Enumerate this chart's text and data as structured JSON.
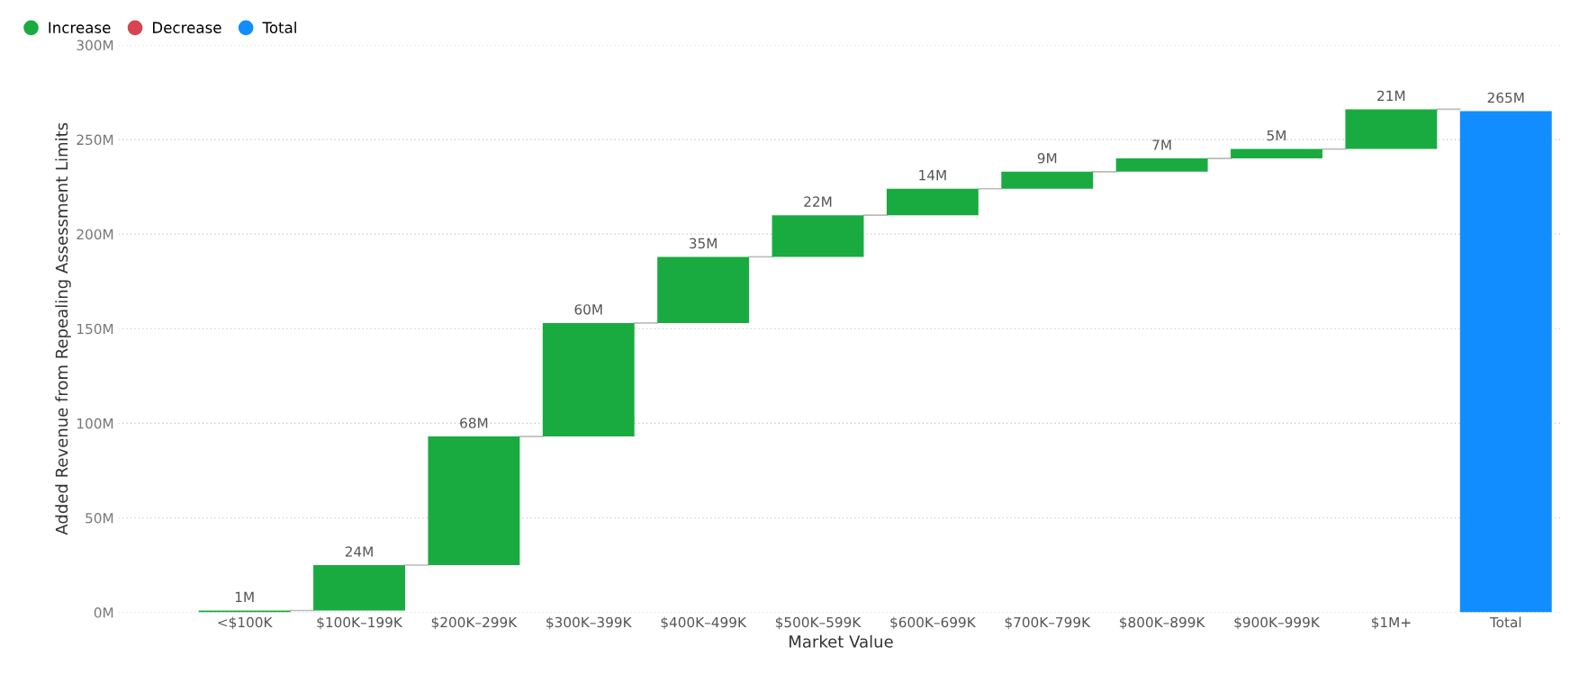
{
  "chart_data": {
    "type": "bar",
    "xlabel": "Market Value",
    "ylabel": "Added Revenue from Repealing Assessment Limits",
    "categories": [
      "<$100K",
      "$100K–199K",
      "$200K–299K",
      "$300K–399K",
      "$400K–499K",
      "$500K–599K",
      "$600K–699K",
      "$700K–799K",
      "$800K–899K",
      "$900K–999K",
      "$1M+",
      "Total"
    ],
    "series": [
      {
        "name": "Increase",
        "color": "#1aab40",
        "base": [
          0,
          1,
          25,
          93,
          153,
          188,
          210,
          224,
          233,
          240,
          245,
          null
        ],
        "values": [
          1,
          24,
          68,
          60,
          35,
          22,
          14,
          9,
          7,
          5,
          21,
          null
        ],
        "value_labels": [
          "1M",
          "24M",
          "68M",
          "60M",
          "35M",
          "22M",
          "14M",
          "9M",
          "7M",
          "5M",
          "21M",
          null
        ]
      },
      {
        "name": "Decrease",
        "color": "#d64550",
        "values": [
          null,
          null,
          null,
          null,
          null,
          null,
          null,
          null,
          null,
          null,
          null,
          null
        ]
      },
      {
        "name": "Total",
        "color": "#118dff",
        "base": [
          null,
          null,
          null,
          null,
          null,
          null,
          null,
          null,
          null,
          null,
          null,
          0
        ],
        "values": [
          null,
          null,
          null,
          null,
          null,
          null,
          null,
          null,
          null,
          null,
          null,
          265
        ],
        "value_labels": [
          null,
          null,
          null,
          null,
          null,
          null,
          null,
          null,
          null,
          null,
          null,
          "265M"
        ]
      }
    ],
    "ylim": [
      0,
      300
    ],
    "yticks": [
      {
        "value": 0,
        "label": "0M"
      },
      {
        "value": 50,
        "label": "50M"
      },
      {
        "value": 100,
        "label": "100M"
      },
      {
        "value": 150,
        "label": "150M"
      },
      {
        "value": 200,
        "label": "200M"
      },
      {
        "value": 250,
        "label": "250M"
      },
      {
        "value": 300,
        "label": "300M"
      }
    ],
    "grid": "y",
    "legend": "top left"
  }
}
